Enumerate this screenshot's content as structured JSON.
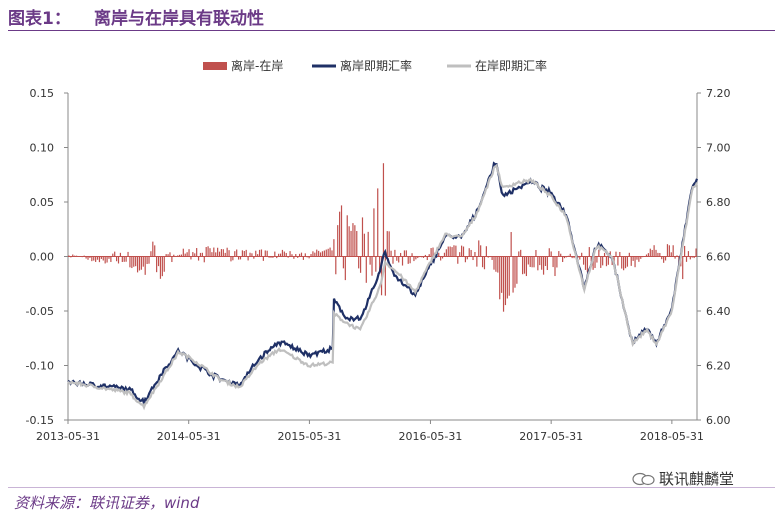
{
  "header": {
    "figure_label": "图表1：",
    "figure_title": "离岸与在岸具有联动性"
  },
  "footer": {
    "source": "资料来源：联讯证券，wind",
    "watermark": "联讯麒麟堂"
  },
  "chart_data": {
    "type": "bar+line",
    "title": "",
    "legend_position": "top",
    "x_tick_labels": [
      "2013-05-31",
      "2014-05-31",
      "2015-05-31",
      "2016-05-31",
      "2017-05-31",
      "2018-05-31"
    ],
    "x_range": [
      "2013-05-31",
      "2018-08-15"
    ],
    "left_axis": {
      "min": -0.15,
      "max": 0.15,
      "ticks": [
        "0.15",
        "0.10",
        "0.05",
        "0.00",
        "-0.05",
        "-0.10",
        "-0.15"
      ]
    },
    "right_axis": {
      "min": 6.0,
      "max": 7.2,
      "ticks": [
        "7.20",
        "7.00",
        "6.80",
        "6.60",
        "6.40",
        "6.20",
        "6.00"
      ]
    },
    "series": [
      {
        "name": "离岸-在岸",
        "kind": "bar",
        "axis": "left",
        "color": "#c0504d"
      },
      {
        "name": "离岸即期汇率",
        "kind": "line",
        "axis": "right",
        "color": "#1f3066"
      },
      {
        "name": "在岸即期汇率",
        "kind": "line",
        "axis": "right",
        "color": "#bfbfbf"
      }
    ],
    "onshore_rate_points": [
      [
        "2013-05-31",
        6.14
      ],
      [
        "2013-09-01",
        6.12
      ],
      [
        "2013-12-01",
        6.1
      ],
      [
        "2014-01-15",
        6.05
      ],
      [
        "2014-03-15",
        6.16
      ],
      [
        "2014-05-01",
        6.25
      ],
      [
        "2014-06-15",
        6.22
      ],
      [
        "2014-09-01",
        6.15
      ],
      [
        "2014-11-01",
        6.12
      ],
      [
        "2015-01-01",
        6.21
      ],
      [
        "2015-03-01",
        6.26
      ],
      [
        "2015-05-31",
        6.2
      ],
      [
        "2015-08-10",
        6.21
      ],
      [
        "2015-08-13",
        6.39
      ],
      [
        "2015-09-15",
        6.36
      ],
      [
        "2015-11-01",
        6.33
      ],
      [
        "2015-12-31",
        6.49
      ],
      [
        "2016-01-15",
        6.58
      ],
      [
        "2016-03-01",
        6.53
      ],
      [
        "2016-04-15",
        6.47
      ],
      [
        "2016-05-31",
        6.58
      ],
      [
        "2016-07-15",
        6.68
      ],
      [
        "2016-09-01",
        6.67
      ],
      [
        "2016-10-15",
        6.75
      ],
      [
        "2016-12-15",
        6.94
      ],
      [
        "2017-01-05",
        6.85
      ],
      [
        "2017-02-15",
        6.87
      ],
      [
        "2017-04-01",
        6.88
      ],
      [
        "2017-05-31",
        6.82
      ],
      [
        "2017-07-15",
        6.75
      ],
      [
        "2017-09-08",
        6.48
      ],
      [
        "2017-10-15",
        6.64
      ],
      [
        "2017-12-01",
        6.6
      ],
      [
        "2018-02-01",
        6.28
      ],
      [
        "2018-03-15",
        6.33
      ],
      [
        "2018-04-15",
        6.28
      ],
      [
        "2018-05-31",
        6.4
      ],
      [
        "2018-06-30",
        6.62
      ],
      [
        "2018-08-01",
        6.85
      ],
      [
        "2018-08-15",
        6.87
      ]
    ],
    "offshore_offsets": [
      [
        "2013-05-31",
        0.0
      ],
      [
        "2014-03-15",
        0.02
      ],
      [
        "2014-06-15",
        -0.01
      ],
      [
        "2015-08-13",
        0.05
      ],
      [
        "2015-09-15",
        0.02
      ],
      [
        "2016-01-08",
        0.06
      ],
      [
        "2016-01-25",
        0.01
      ],
      [
        "2016-02-15",
        -0.02
      ],
      [
        "2016-12-15",
        0.01
      ],
      [
        "2017-01-05",
        -0.03
      ],
      [
        "2017-06-01",
        0.01
      ],
      [
        "2018-01-01",
        0.0
      ],
      [
        "2018-08-15",
        0.01
      ]
    ],
    "spread_bar_envelope": [
      [
        "2013-05-31",
        0.004
      ],
      [
        "2013-08-15",
        -0.005
      ],
      [
        "2013-12-01",
        -0.01
      ],
      [
        "2014-01-20",
        -0.02
      ],
      [
        "2014-03-01",
        -0.025
      ],
      [
        "2014-05-15",
        0.01
      ],
      [
        "2014-07-01",
        0.01
      ],
      [
        "2014-10-01",
        0.008
      ],
      [
        "2015-01-01",
        0.007
      ],
      [
        "2015-05-31",
        0.005
      ],
      [
        "2015-08-12",
        0.01
      ],
      [
        "2015-08-20",
        0.06
      ],
      [
        "2015-09-10",
        0.045
      ],
      [
        "2015-10-20",
        0.03
      ],
      [
        "2015-12-01",
        0.05
      ],
      [
        "2015-12-31",
        0.07
      ],
      [
        "2016-01-10",
        0.1
      ],
      [
        "2016-01-25",
        0.03
      ],
      [
        "2016-02-10",
        -0.015
      ],
      [
        "2016-03-20",
        -0.01
      ],
      [
        "2016-05-31",
        0.008
      ],
      [
        "2016-08-01",
        0.012
      ],
      [
        "2016-10-01",
        0.015
      ],
      [
        "2016-11-10",
        0.02
      ],
      [
        "2016-12-10",
        -0.015
      ],
      [
        "2017-01-05",
        -0.06
      ],
      [
        "2017-02-15",
        -0.03
      ],
      [
        "2017-04-01",
        -0.015
      ],
      [
        "2017-06-15",
        -0.02
      ],
      [
        "2017-08-01",
        0.008
      ],
      [
        "2017-09-15",
        -0.015
      ],
      [
        "2017-12-01",
        -0.01
      ],
      [
        "2018-02-01",
        -0.015
      ],
      [
        "2018-04-01",
        0.01
      ],
      [
        "2018-06-01",
        0.015
      ],
      [
        "2018-07-01",
        -0.025
      ],
      [
        "2018-08-15",
        0.01
      ]
    ]
  }
}
